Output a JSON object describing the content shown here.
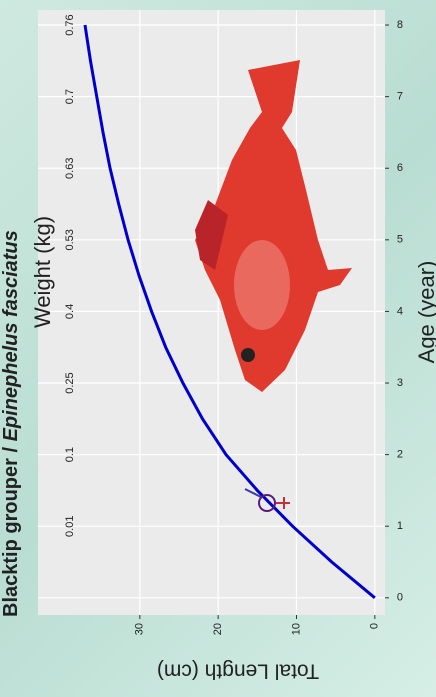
{
  "chart_data": {
    "type": "line",
    "title": "Blacktip grouper / ",
    "title_species": "Epinephelus fasciatus",
    "x_label": "Age (year)",
    "y_label": "Total Length (cm)",
    "x": [
      0,
      0.5,
      1,
      1.5,
      2,
      2.5,
      3,
      3.5,
      4,
      4.5,
      5,
      5.5,
      6,
      6.5,
      7,
      7.5,
      8
    ],
    "values": [
      0,
      5.5,
      10.5,
      15,
      19,
      22,
      24.5,
      26.7,
      28.5,
      30.1,
      31.5,
      32.7,
      33.8,
      34.7,
      35.5,
      36.3,
      37
    ],
    "color": "#0000cc",
    "xlim": [
      -0.24,
      8.21
    ],
    "ylim": [
      -1.3,
      43
    ],
    "xticks": [
      0,
      1,
      2,
      3,
      4,
      5,
      6,
      7,
      8
    ],
    "yticks": [
      0,
      10,
      20,
      30
    ],
    "grid": true,
    "weight_label": "Weight (kg)",
    "weight_ticks": {
      "x": [
        1,
        2,
        3,
        4,
        5,
        6,
        7,
        8
      ],
      "labels": [
        "0.01",
        "0.1",
        "0.25",
        "0.4",
        "0.53",
        "0.63",
        "0.7",
        "0.76"
      ]
    }
  }
}
